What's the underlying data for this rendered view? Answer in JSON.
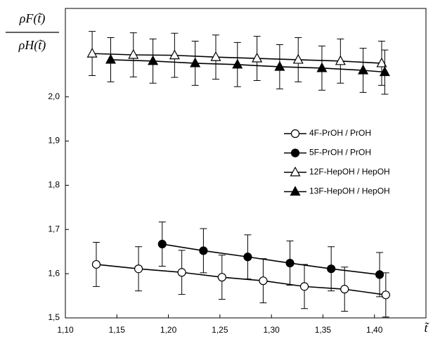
{
  "chart_data": {
    "type": "scatter",
    "y_label": {
      "numerator": "ρF(t̃)",
      "denominator": "ρH(t̃)"
    },
    "x_label": "t̃",
    "xlim": [
      1.1,
      1.45
    ],
    "xticks": [
      {
        "value": 1.1,
        "label": "1,10"
      },
      {
        "value": 1.15,
        "label": "1,15"
      },
      {
        "value": 1.2,
        "label": "1,20"
      },
      {
        "value": 1.25,
        "label": "1,25"
      },
      {
        "value": 1.3,
        "label": "1,30"
      },
      {
        "value": 1.35,
        "label": "1,35"
      },
      {
        "value": 1.4,
        "label": "1,40"
      }
    ],
    "ylim": [
      1.5,
      2.2
    ],
    "yticks": [
      {
        "value": 1.5,
        "label": "1,5"
      },
      {
        "value": 1.6,
        "label": "1,6"
      },
      {
        "value": 1.7,
        "label": "1,7"
      },
      {
        "value": 1.8,
        "label": "1,8"
      },
      {
        "value": 1.9,
        "label": "1,9"
      },
      {
        "value": 2.0,
        "label": "2,0"
      }
    ],
    "series": [
      {
        "name": "4F-PrOH / PrOH",
        "marker": "circle",
        "filled": false,
        "color": "#000000",
        "x": [
          1.13,
          1.171,
          1.213,
          1.252,
          1.292,
          1.332,
          1.371,
          1.411
        ],
        "values": [
          1.621,
          1.611,
          1.603,
          1.592,
          1.584,
          1.571,
          1.565,
          1.552
        ],
        "errors": [
          0.05,
          0.05,
          0.05,
          0.05,
          0.05,
          0.05,
          0.05,
          0.05
        ]
      },
      {
        "name": "5F-PrOH / PrOH",
        "marker": "circle",
        "filled": true,
        "color": "#000000",
        "x": [
          1.194,
          1.234,
          1.277,
          1.318,
          1.358,
          1.405
        ],
        "values": [
          1.667,
          1.652,
          1.638,
          1.624,
          1.611,
          1.598
        ],
        "errors": [
          0.05,
          0.05,
          0.05,
          0.05,
          0.05,
          0.05
        ]
      },
      {
        "name": "12F-HepOH / HepOH",
        "marker": "triangle",
        "filled": false,
        "color": "#000000",
        "x": [
          1.126,
          1.166,
          1.206,
          1.246,
          1.286,
          1.326,
          1.367,
          1.407
        ],
        "values": [
          2.098,
          2.095,
          2.094,
          2.09,
          2.087,
          2.084,
          2.081,
          2.076
        ],
        "errors": [
          0.05,
          0.05,
          0.05,
          0.05,
          0.05,
          0.05,
          0.05,
          0.05
        ]
      },
      {
        "name": "13F-HepOH / HepOH",
        "marker": "triangle",
        "filled": true,
        "color": "#000000",
        "x": [
          1.144,
          1.185,
          1.226,
          1.267,
          1.308,
          1.349,
          1.389,
          1.41
        ],
        "values": [
          2.084,
          2.081,
          2.076,
          2.073,
          2.068,
          2.065,
          2.06,
          2.056
        ],
        "errors": [
          0.05,
          0.05,
          0.05,
          0.05,
          0.05,
          0.05,
          0.05,
          0.05
        ]
      }
    ]
  }
}
